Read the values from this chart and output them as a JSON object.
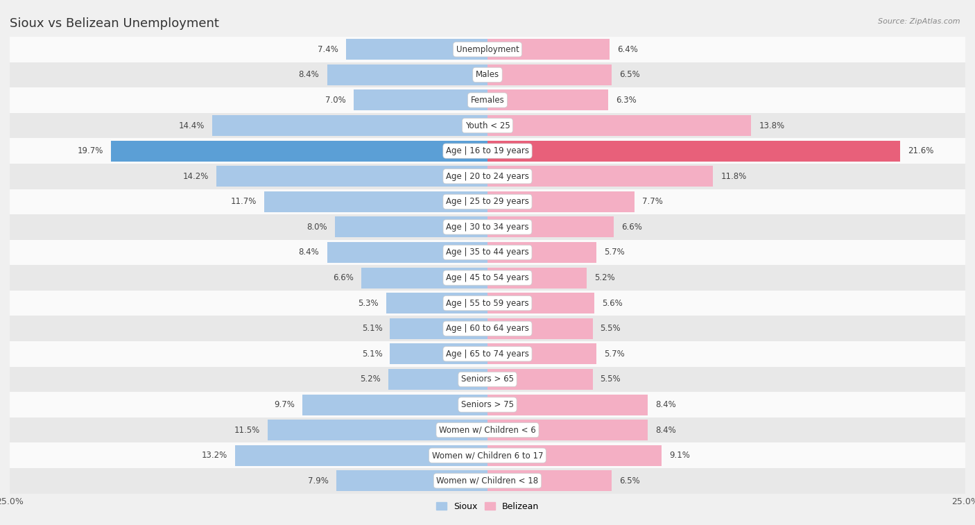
{
  "title": "Sioux vs Belizean Unemployment",
  "source": "Source: ZipAtlas.com",
  "categories": [
    "Unemployment",
    "Males",
    "Females",
    "Youth < 25",
    "Age | 16 to 19 years",
    "Age | 20 to 24 years",
    "Age | 25 to 29 years",
    "Age | 30 to 34 years",
    "Age | 35 to 44 years",
    "Age | 45 to 54 years",
    "Age | 55 to 59 years",
    "Age | 60 to 64 years",
    "Age | 65 to 74 years",
    "Seniors > 65",
    "Seniors > 75",
    "Women w/ Children < 6",
    "Women w/ Children 6 to 17",
    "Women w/ Children < 18"
  ],
  "sioux_values": [
    7.4,
    8.4,
    7.0,
    14.4,
    19.7,
    14.2,
    11.7,
    8.0,
    8.4,
    6.6,
    5.3,
    5.1,
    5.1,
    5.2,
    9.7,
    11.5,
    13.2,
    7.9
  ],
  "belizean_values": [
    6.4,
    6.5,
    6.3,
    13.8,
    21.6,
    11.8,
    7.7,
    6.6,
    5.7,
    5.2,
    5.6,
    5.5,
    5.7,
    5.5,
    8.4,
    8.4,
    9.1,
    6.5
  ],
  "sioux_color": "#a8c8e8",
  "belizean_color": "#f4afc4",
  "sioux_highlight_color": "#5b9fd6",
  "belizean_highlight_color": "#e8607a",
  "highlight_row": 4,
  "xlim": 25.0,
  "background_color": "#f0f0f0",
  "row_bg_light": "#fafafa",
  "row_bg_dark": "#e8e8e8",
  "bar_height": 0.82,
  "title_fontsize": 13,
  "label_fontsize": 8.5,
  "tick_fontsize": 9,
  "value_fontsize": 8.5
}
